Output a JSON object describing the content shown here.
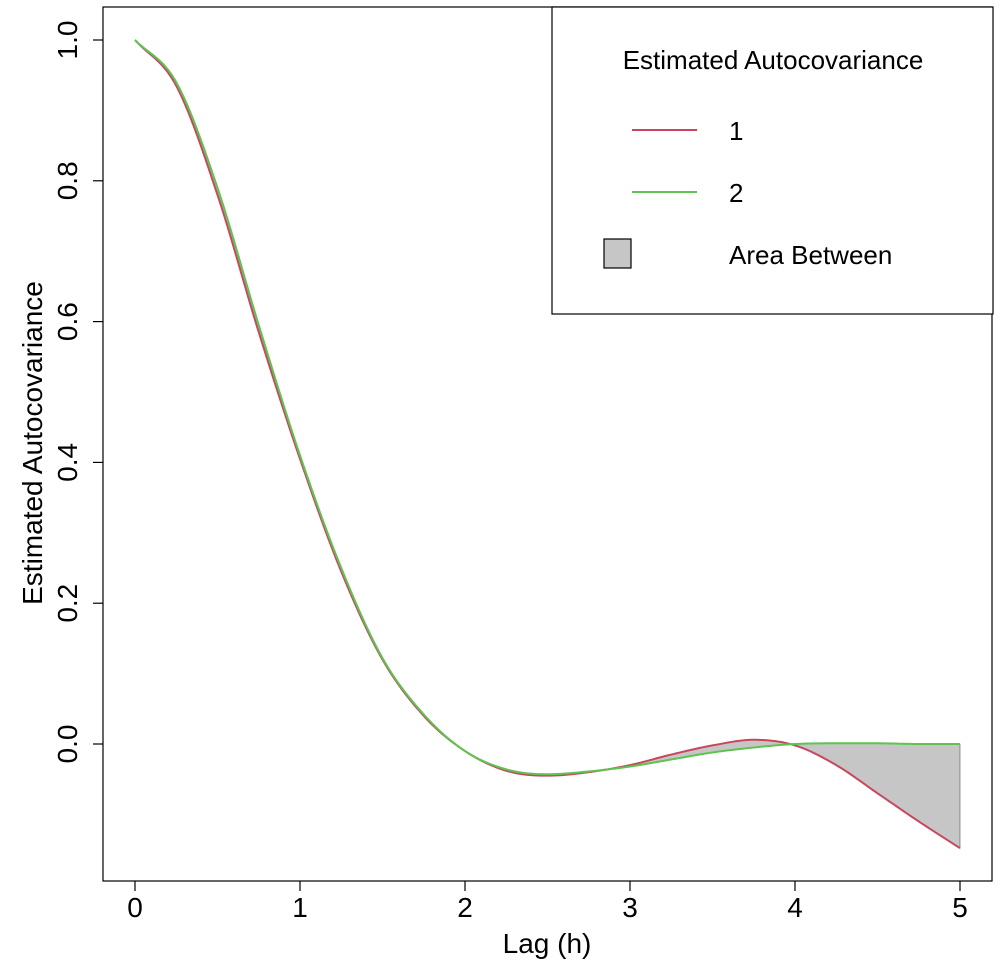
{
  "chart_data": {
    "type": "line",
    "title": "",
    "xlabel": "Lag (h)",
    "ylabel": "Estimated Autocovariance",
    "xlim": [
      0,
      5
    ],
    "ylim": [
      -0.15,
      1.0
    ],
    "x_ticks": [
      "0",
      "1",
      "2",
      "3",
      "4",
      "5"
    ],
    "y_ticks": [
      "0.0",
      "0.2",
      "0.4",
      "0.6",
      "0.8",
      "1.0"
    ],
    "grid": false,
    "legend": {
      "title": "Estimated Autocovariance",
      "placement": "top-right",
      "area_label": "Area Between"
    },
    "series": [
      {
        "name": "1",
        "color": "#c8475f",
        "x": [
          0,
          0.25,
          0.5,
          0.75,
          1.0,
          1.25,
          1.5,
          1.75,
          2.0,
          2.25,
          2.5,
          2.75,
          3.0,
          3.25,
          3.5,
          3.75,
          4.0,
          4.25,
          4.5,
          4.75,
          5.0
        ],
        "y": [
          1.0,
          0.935,
          0.78,
          0.585,
          0.405,
          0.245,
          0.12,
          0.04,
          -0.01,
          -0.038,
          -0.045,
          -0.04,
          -0.03,
          -0.015,
          -0.002,
          0.006,
          -0.002,
          -0.03,
          -0.07,
          -0.11,
          -0.148
        ]
      },
      {
        "name": "2",
        "color": "#5ec450",
        "x": [
          0,
          0.25,
          0.5,
          0.75,
          1.0,
          1.25,
          1.5,
          1.75,
          2.0,
          2.25,
          2.5,
          2.75,
          3.0,
          3.25,
          3.5,
          3.75,
          4.0,
          4.25,
          4.5,
          4.75,
          5.0
        ],
        "y": [
          1.0,
          0.94,
          0.79,
          0.595,
          0.41,
          0.25,
          0.122,
          0.042,
          -0.01,
          -0.036,
          -0.043,
          -0.039,
          -0.032,
          -0.022,
          -0.012,
          -0.005,
          0.0,
          0.001,
          0.001,
          0.0,
          0.0
        ]
      }
    ],
    "area_between_color": "#c6c6c6"
  }
}
